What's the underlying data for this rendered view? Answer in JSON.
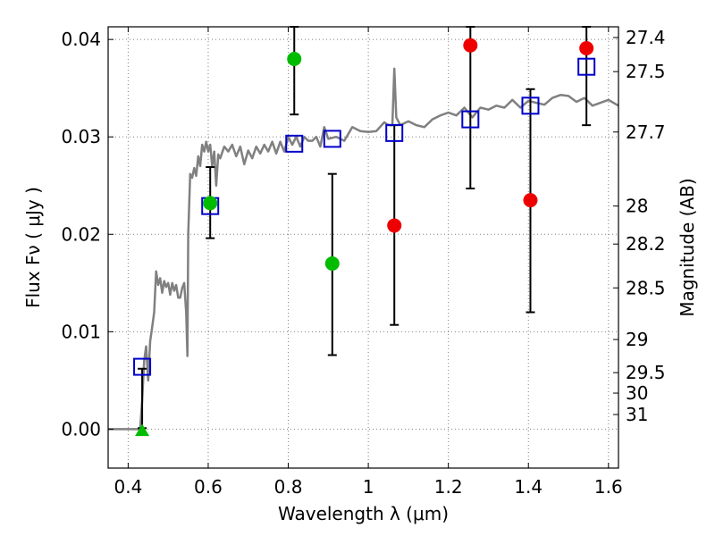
{
  "chart_data": {
    "type": "scatter",
    "xlabel": "Wavelength  λ (μm)",
    "ylabel": "Flux  Fν  ( μJy )",
    "y2label": "Magnitude (AB)",
    "xlim": [
      0.35,
      1.625
    ],
    "ylim": [
      -0.004,
      0.0413
    ],
    "grid": true,
    "x_ticks": [
      {
        "v": 0.4,
        "t": "0.4"
      },
      {
        "v": 0.6,
        "t": "0.6"
      },
      {
        "v": 0.8,
        "t": "0.8"
      },
      {
        "v": 1.0,
        "t": "1"
      },
      {
        "v": 1.2,
        "t": "1.2"
      },
      {
        "v": 1.4,
        "t": "1.4"
      },
      {
        "v": 1.6,
        "t": "1.6"
      }
    ],
    "y_ticks": [
      {
        "v": 0.0,
        "t": "0.00"
      },
      {
        "v": 0.01,
        "t": "0.01"
      },
      {
        "v": 0.02,
        "t": "0.02"
      },
      {
        "v": 0.03,
        "t": "0.03"
      },
      {
        "v": 0.04,
        "t": "0.04"
      }
    ],
    "y2_ticks": [
      {
        "flux": 0.0402,
        "t": "27.4"
      },
      {
        "flux": 0.0367,
        "t": "27.5"
      },
      {
        "flux": 0.0305,
        "t": "27.7"
      },
      {
        "flux": 0.0229,
        "t": "28"
      },
      {
        "flux": 0.019,
        "t": "28.2"
      },
      {
        "flux": 0.0145,
        "t": "28.5"
      },
      {
        "flux": 0.0092,
        "t": "29"
      },
      {
        "flux": 0.0058,
        "t": "29.5"
      },
      {
        "flux": 0.0037,
        "t": "30"
      },
      {
        "flux": 0.0015,
        "t": "31"
      }
    ],
    "colors": {
      "model": "#808080",
      "green": "#00bb00",
      "red": "#ee0000",
      "square": "#0000cc",
      "grid": "#808080"
    },
    "model_spectrum": {
      "x": [
        0.35,
        0.4,
        0.405,
        0.41,
        0.415,
        0.42,
        0.425,
        0.43,
        0.435,
        0.44,
        0.445,
        0.45,
        0.455,
        0.46,
        0.465,
        0.47,
        0.475,
        0.48,
        0.485,
        0.49,
        0.495,
        0.5,
        0.505,
        0.51,
        0.515,
        0.52,
        0.525,
        0.53,
        0.535,
        0.54,
        0.545,
        0.548,
        0.55,
        0.555,
        0.56,
        0.565,
        0.57,
        0.575,
        0.58,
        0.585,
        0.59,
        0.595,
        0.6,
        0.605,
        0.61,
        0.615,
        0.62,
        0.625,
        0.63,
        0.64,
        0.65,
        0.66,
        0.67,
        0.68,
        0.69,
        0.7,
        0.71,
        0.72,
        0.73,
        0.74,
        0.75,
        0.76,
        0.77,
        0.78,
        0.79,
        0.8,
        0.81,
        0.82,
        0.83,
        0.84,
        0.85,
        0.86,
        0.87,
        0.88,
        0.89,
        0.9,
        0.92,
        0.94,
        0.96,
        0.98,
        1.0,
        1.02,
        1.04,
        1.05,
        1.06,
        1.065,
        1.07,
        1.08,
        1.1,
        1.12,
        1.14,
        1.16,
        1.18,
        1.2,
        1.22,
        1.24,
        1.26,
        1.28,
        1.3,
        1.32,
        1.34,
        1.36,
        1.38,
        1.4,
        1.42,
        1.44,
        1.46,
        1.48,
        1.5,
        1.52,
        1.54,
        1.56,
        1.58,
        1.6,
        1.625
      ],
      "y": [
        0.0,
        0.0,
        0.0,
        0.0,
        0.0,
        0.0,
        0.0,
        0.0,
        0.003,
        0.007,
        0.0085,
        0.005,
        0.009,
        0.0105,
        0.012,
        0.0162,
        0.0148,
        0.0155,
        0.014,
        0.0152,
        0.0146,
        0.015,
        0.0138,
        0.015,
        0.0142,
        0.0148,
        0.0135,
        0.0135,
        0.0145,
        0.015,
        0.012,
        0.0075,
        0.02,
        0.0262,
        0.0258,
        0.0268,
        0.026,
        0.028,
        0.027,
        0.0292,
        0.0285,
        0.0295,
        0.0285,
        0.0292,
        0.027,
        0.0285,
        0.025,
        0.0282,
        0.0278,
        0.029,
        0.0285,
        0.0292,
        0.028,
        0.029,
        0.0272,
        0.0286,
        0.0278,
        0.029,
        0.0283,
        0.0292,
        0.0285,
        0.0295,
        0.0283,
        0.0295,
        0.0285,
        0.03,
        0.0292,
        0.03,
        0.029,
        0.03,
        0.0296,
        0.0296,
        0.03,
        0.029,
        0.031,
        0.0298,
        0.03,
        0.0296,
        0.031,
        0.0306,
        0.0305,
        0.0306,
        0.0315,
        0.0312,
        0.0312,
        0.037,
        0.032,
        0.0312,
        0.0316,
        0.0312,
        0.031,
        0.0318,
        0.0322,
        0.0325,
        0.0322,
        0.033,
        0.032,
        0.033,
        0.0328,
        0.0332,
        0.033,
        0.0338,
        0.033,
        0.0337,
        0.0335,
        0.0333,
        0.034,
        0.0343,
        0.0342,
        0.0336,
        0.034,
        0.0332,
        0.0335,
        0.0338,
        0.0332
      ]
    },
    "series": [
      {
        "marker": "circle-green",
        "points": [
          {
            "x": 0.605,
            "y": 0.0232,
            "lo": 0.0196,
            "hi": 0.0269
          },
          {
            "x": 0.815,
            "y": 0.038,
            "lo": 0.0323,
            "hi": 0.0413
          },
          {
            "x": 0.91,
            "y": 0.017,
            "lo": 0.0076,
            "hi": 0.0262
          }
        ]
      },
      {
        "marker": "triangle-green",
        "points": [
          {
            "x": 0.435,
            "y": -0.0002,
            "lo": null,
            "hi": null
          }
        ]
      },
      {
        "marker": "circle-red",
        "points": [
          {
            "x": 1.065,
            "y": 0.0209,
            "lo": 0.0107,
            "hi": 0.0312
          },
          {
            "x": 1.255,
            "y": 0.0394,
            "lo": 0.0247,
            "hi": 0.0413
          },
          {
            "x": 1.405,
            "y": 0.0235,
            "lo": 0.012,
            "hi": 0.0349
          },
          {
            "x": 1.545,
            "y": 0.0391,
            "lo": 0.0312,
            "hi": 0.0413
          }
        ]
      },
      {
        "marker": "square-blue",
        "points": [
          {
            "x": 0.435,
            "y": 0.0064,
            "lo": 0.0001,
            "hi": 0.0062
          },
          {
            "x": 0.605,
            "y": 0.0229,
            "lo": null,
            "hi": null
          },
          {
            "x": 0.815,
            "y": 0.0293,
            "lo": null,
            "hi": null
          },
          {
            "x": 0.91,
            "y": 0.0298,
            "lo": null,
            "hi": null
          },
          {
            "x": 1.065,
            "y": 0.0304,
            "lo": null,
            "hi": null
          },
          {
            "x": 1.255,
            "y": 0.0318,
            "lo": null,
            "hi": null
          },
          {
            "x": 1.405,
            "y": 0.0332,
            "lo": null,
            "hi": null
          },
          {
            "x": 1.545,
            "y": 0.0372,
            "lo": null,
            "hi": null
          }
        ]
      }
    ]
  }
}
